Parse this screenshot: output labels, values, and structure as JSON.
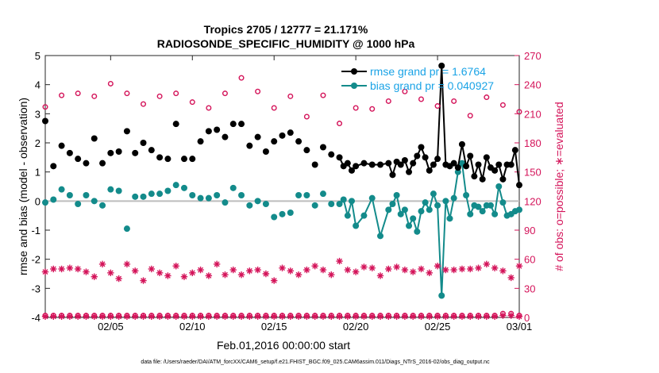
{
  "colors": {
    "rmse": "#000000",
    "bias": "#138b8b",
    "obs": "#d4145a",
    "legend_text": "#1aa3e6",
    "zero_line": "#bdbdbd"
  },
  "chart_data": {
    "type": "line",
    "title": "Tropics 2705 / 12777 = 21.171%",
    "subtitle": "RADIOSONDE_SPECIFIC_HUMIDITY @ 1000 hPa",
    "xlabel": "Feb.01,2016 00:00:00 start",
    "ylabel": "rmse and bias (model - observation)",
    "y2label": "# of obs: o=possible; ∗=evaluated",
    "footnote": "data file: /Users/raeder/DAI/ATM_forcXX/CAM6_setup/f.e21.FHIST_BGC.f09_025.CAM6assim.011/Diags_NTrS_2016-02/obs_diag_output.nc",
    "xlim": [
      1,
      30
    ],
    "ylim": [
      -4,
      5
    ],
    "y2lim": [
      0,
      270
    ],
    "x_ticks": [
      5,
      10,
      15,
      20,
      25,
      30
    ],
    "x_tick_labels": [
      "02/05",
      "02/10",
      "02/15",
      "02/20",
      "02/25",
      "03/01"
    ],
    "y_ticks": [
      -4,
      -3,
      -2,
      -1,
      0,
      1,
      2,
      3,
      4,
      5
    ],
    "y_tick_labels": [
      "-4",
      "-3",
      "-2",
      "-1",
      "0",
      "1",
      "2",
      "3",
      "4",
      "5"
    ],
    "y2_ticks": [
      0,
      30,
      60,
      90,
      120,
      150,
      180,
      210,
      240,
      270
    ],
    "y2_tick_labels": [
      "0",
      "30",
      "60",
      "90",
      "120",
      "150",
      "180",
      "210",
      "240",
      "270"
    ],
    "legend": [
      {
        "name": "rmse grand pr = 1.6764",
        "series": "rmse"
      },
      {
        "name": "bias grand pr = 0.040927",
        "series": "bias"
      }
    ],
    "series": [
      {
        "name": "rmse",
        "x": [
          1.0,
          1.5,
          2.0,
          2.5,
          3.0,
          3.5,
          4.0,
          4.5,
          5.0,
          5.5,
          6.0,
          6.5,
          7.0,
          7.5,
          8.0,
          8.5,
          9.0,
          9.5,
          10.0,
          10.5,
          11.0,
          11.5,
          12.0,
          12.5,
          13.0,
          13.5,
          14.0,
          14.5,
          15.0,
          15.5,
          16.0,
          16.5,
          17.0,
          17.5,
          18.0,
          18.5,
          19.0,
          19.25,
          19.5,
          19.75,
          20.0,
          20.5,
          21.0,
          21.5,
          22.0,
          22.25,
          22.5,
          22.75,
          23.0,
          23.25,
          23.5,
          23.75,
          24.0,
          24.25,
          24.5,
          24.75,
          25.0,
          25.25,
          25.5,
          25.75,
          26.0,
          26.25,
          26.5,
          26.75,
          27.0,
          27.25,
          27.5,
          27.75,
          28.0,
          28.25,
          28.5,
          28.75,
          29.0,
          29.25,
          29.5,
          29.75,
          30.0
        ],
        "values": [
          2.75,
          1.2,
          1.9,
          1.65,
          1.45,
          1.3,
          2.15,
          1.3,
          1.65,
          1.7,
          2.4,
          1.65,
          2.0,
          1.75,
          1.5,
          1.45,
          2.65,
          1.45,
          1.45,
          2.05,
          2.4,
          2.45,
          2.2,
          2.65,
          2.65,
          1.9,
          2.2,
          1.7,
          2.05,
          2.25,
          2.35,
          2.05,
          1.75,
          1.25,
          1.85,
          1.6,
          1.5,
          1.2,
          1.3,
          1.05,
          1.2,
          1.3,
          1.25,
          1.25,
          1.3,
          0.9,
          1.35,
          1.25,
          1.4,
          1.0,
          1.3,
          1.55,
          1.85,
          1.5,
          1.05,
          1.25,
          1.45,
          4.65,
          1.25,
          1.2,
          1.3,
          1.15,
          1.95,
          1.2,
          1.55,
          0.85,
          1.25,
          0.75,
          1.5,
          1.15,
          1.05,
          1.25,
          0.75,
          1.25,
          1.25,
          1.75,
          0.55
        ]
      },
      {
        "name": "bias",
        "x": [
          1.0,
          1.5,
          2.0,
          2.5,
          3.0,
          3.5,
          4.0,
          4.5,
          5.0,
          5.5,
          6.0,
          6.5,
          7.0,
          7.5,
          8.0,
          8.5,
          9.0,
          9.5,
          10.0,
          10.5,
          11.0,
          11.5,
          12.0,
          12.5,
          13.0,
          13.5,
          14.0,
          14.5,
          15.0,
          15.5,
          16.0,
          16.5,
          17.0,
          17.5,
          18.0,
          18.5,
          19.0,
          19.25,
          19.5,
          19.75,
          20.0,
          20.5,
          21.0,
          21.5,
          22.0,
          22.25,
          22.5,
          22.75,
          23.0,
          23.25,
          23.5,
          23.75,
          24.0,
          24.25,
          24.5,
          24.75,
          25.0,
          25.25,
          25.5,
          25.75,
          26.0,
          26.25,
          26.5,
          26.75,
          27.0,
          27.25,
          27.5,
          27.75,
          28.0,
          28.25,
          28.5,
          28.75,
          29.0,
          29.25,
          29.5,
          29.75,
          30.0
        ],
        "values": [
          -0.05,
          0.05,
          0.4,
          0.2,
          -0.1,
          0.2,
          0.0,
          -0.15,
          0.4,
          0.35,
          -0.95,
          0.15,
          0.15,
          0.25,
          0.25,
          0.35,
          0.55,
          0.45,
          0.2,
          0.1,
          0.1,
          0.2,
          -0.05,
          0.45,
          0.2,
          -0.15,
          0.0,
          -0.1,
          -0.55,
          -0.45,
          -0.4,
          0.2,
          0.2,
          -0.15,
          0.25,
          -0.1,
          -0.1,
          0.05,
          -0.5,
          0.0,
          -0.85,
          -0.5,
          0.1,
          -1.2,
          -0.3,
          -0.1,
          0.2,
          -0.45,
          -0.3,
          -0.85,
          -0.6,
          -1.05,
          -0.35,
          -0.05,
          -0.3,
          0.25,
          -0.15,
          -3.25,
          0.0,
          -0.6,
          0.1,
          1.0,
          1.3,
          0.2,
          -0.45,
          -0.15,
          -0.2,
          -0.35,
          -0.15,
          -0.15,
          -0.45,
          0.5,
          -0.05,
          -0.5,
          -0.45,
          -0.35,
          -0.3
        ]
      },
      {
        "name": "obs possible",
        "x": [
          1.0,
          2.0,
          3.0,
          4.0,
          5.0,
          6.0,
          7.0,
          8.0,
          9.0,
          10.0,
          11.0,
          12.0,
          13.0,
          14.0,
          15.0,
          16.0,
          17.0,
          18.0,
          19.0,
          20.0,
          21.0,
          22.0,
          23.0,
          24.0,
          25.0,
          26.0,
          27.0,
          28.0,
          29.0,
          30.0
        ],
        "values": [
          217,
          229,
          231,
          228,
          241,
          231,
          220,
          228,
          231,
          222,
          216,
          231,
          247,
          233,
          216,
          228,
          207,
          229,
          200,
          216,
          215,
          223,
          233,
          225,
          218,
          223,
          208,
          227,
          219,
          212
        ]
      },
      {
        "name": "obs evaluated",
        "x": [
          1.0,
          1.5,
          2.0,
          2.5,
          3.0,
          3.5,
          4.0,
          4.5,
          5.0,
          5.5,
          6.0,
          6.5,
          7.0,
          7.5,
          8.0,
          8.5,
          9.0,
          9.5,
          10.0,
          10.5,
          11.0,
          11.5,
          12.0,
          12.5,
          13.0,
          13.5,
          14.0,
          14.5,
          15.0,
          15.5,
          16.0,
          16.5,
          17.0,
          17.5,
          18.0,
          18.5,
          19.0,
          19.5,
          20.0,
          20.5,
          21.0,
          21.5,
          22.0,
          22.5,
          23.0,
          23.5,
          24.0,
          24.5,
          25.0,
          25.5,
          26.0,
          26.5,
          27.0,
          27.5,
          28.0,
          28.5,
          29.0,
          29.5,
          30.0
        ],
        "values": [
          47,
          50,
          50,
          51,
          50,
          47,
          42,
          55,
          46,
          40,
          55,
          48,
          38,
          50,
          46,
          43,
          53,
          42,
          46,
          49,
          43,
          55,
          44,
          49,
          44,
          48,
          49,
          45,
          38,
          51,
          48,
          44,
          49,
          53,
          49,
          44,
          58,
          49,
          47,
          52,
          51,
          43,
          50,
          52,
          49,
          47,
          50,
          46,
          53,
          49,
          49,
          50,
          50,
          51,
          55,
          51,
          48,
          41,
          53
        ]
      },
      {
        "name": "obs possible bottom",
        "x": [
          1.0,
          1.5,
          2.0,
          2.5,
          3.0,
          3.5,
          4.0,
          4.5,
          5.0,
          5.5,
          6.0,
          6.5,
          7.0,
          7.5,
          8.0,
          8.5,
          9.0,
          9.5,
          10.0,
          10.5,
          11.0,
          11.5,
          12.0,
          12.5,
          13.0,
          13.5,
          14.0,
          14.5,
          15.0,
          15.5,
          16.0,
          16.5,
          17.0,
          17.5,
          18.0,
          18.5,
          19.0,
          19.5,
          20.0,
          20.5,
          21.0,
          21.5,
          22.0,
          22.5,
          23.0,
          23.5,
          24.0,
          24.5,
          25.0,
          25.5,
          26.0,
          26.5,
          27.0,
          27.5,
          28.0,
          28.5,
          29.0,
          29.5,
          30.0
        ],
        "values": [
          2,
          2,
          2,
          2,
          2,
          2,
          2,
          2,
          2,
          2,
          2,
          2,
          2,
          2,
          2,
          2,
          2,
          2,
          2,
          2,
          2,
          2,
          2,
          2,
          2,
          2,
          2,
          2,
          2,
          2,
          2,
          2,
          2,
          2,
          2,
          2,
          2,
          2,
          2,
          2,
          2,
          2,
          2,
          2,
          2,
          2,
          2,
          2,
          2,
          2,
          2,
          2,
          2,
          2,
          2,
          2,
          4,
          4,
          2
        ]
      },
      {
        "name": "obs evaluated bottom",
        "x": [
          1.0,
          1.5,
          2.0,
          2.5,
          3.0,
          3.5,
          4.0,
          4.5,
          5.0,
          5.5,
          6.0,
          6.5,
          7.0,
          7.5,
          8.0,
          8.5,
          9.0,
          9.5,
          10.0,
          10.5,
          11.0,
          11.5,
          12.0,
          12.5,
          13.0,
          13.5,
          14.0,
          14.5,
          15.0,
          15.5,
          16.0,
          16.5,
          17.0,
          17.5,
          18.0,
          18.5,
          19.0,
          19.5,
          20.0,
          20.5,
          21.0,
          21.5,
          22.0,
          22.5,
          23.0,
          23.5,
          24.0,
          24.5,
          25.0,
          25.5,
          26.0,
          26.5,
          27.0,
          27.5,
          28.0,
          28.5,
          29.0,
          29.5,
          30.0
        ],
        "values": [
          1,
          1,
          1,
          1,
          1,
          1,
          1,
          1,
          1,
          1,
          1,
          1,
          1,
          1,
          1,
          1,
          1,
          1,
          1,
          1,
          1,
          1,
          1,
          1,
          1,
          1,
          1,
          1,
          1,
          1,
          1,
          1,
          1,
          1,
          1,
          1,
          1,
          1,
          1,
          1,
          1,
          1,
          1,
          1,
          1,
          1,
          1,
          1,
          1,
          1,
          1,
          1,
          1,
          1,
          1,
          1,
          2,
          2,
          1
        ]
      }
    ]
  }
}
